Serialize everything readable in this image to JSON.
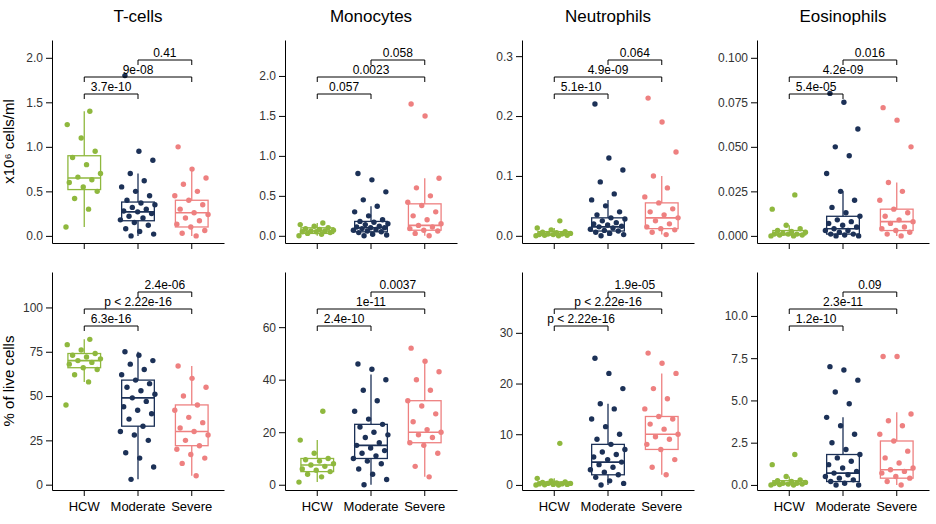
{
  "chart_data": [
    {
      "type": "box",
      "title": "T-cells",
      "ylabel": "x10⁶ cells/ml",
      "categories": [
        "HCW",
        "Moderate",
        "Severe"
      ],
      "colors": [
        "#8fb83e",
        "#1c3157",
        "#ee8080"
      ],
      "tick_labels": "y",
      "ylim": [
        -0.08,
        2.2
      ],
      "yticks": [
        {
          "value": 0,
          "label": "0.0"
        },
        0.5,
        {
          "value": 1,
          "label": "1.0"
        },
        1.5,
        {
          "value": 2,
          "label": "2.0"
        }
      ],
      "boxes": [
        {
          "whislo": 0.1,
          "q1": 0.52,
          "med": 0.65,
          "q3": 0.9,
          "whishi": 1.4
        },
        {
          "whislo": 0.0,
          "q1": 0.17,
          "med": 0.27,
          "q3": 0.38,
          "whishi": 0.7
        },
        {
          "whislo": 0.0,
          "q1": 0.1,
          "med": 0.26,
          "q3": 0.4,
          "whishi": 0.75
        }
      ],
      "points": [
        [
          0.1,
          0.3,
          0.42,
          0.5,
          0.55,
          0.6,
          0.63,
          0.66,
          0.7,
          0.8,
          0.88,
          0.95,
          1.1,
          1.25,
          1.4
        ],
        [
          0.0,
          0.02,
          0.05,
          0.08,
          0.12,
          0.15,
          0.18,
          0.2,
          0.22,
          0.25,
          0.27,
          0.28,
          0.3,
          0.32,
          0.35,
          0.37,
          0.4,
          0.45,
          0.5,
          0.55,
          0.62,
          0.7,
          0.85,
          0.95,
          1.8
        ],
        [
          0.0,
          0.03,
          0.06,
          0.1,
          0.13,
          0.17,
          0.2,
          0.24,
          0.26,
          0.3,
          0.35,
          0.4,
          0.45,
          0.5,
          0.58,
          0.65,
          0.75,
          1.0
        ]
      ],
      "comparisons": [
        {
          "from": "HCW",
          "to": "Moderate",
          "label": "3.7e-10"
        },
        {
          "from": "HCW",
          "to": "Severe",
          "label": "9e-08"
        },
        {
          "from": "Moderate",
          "to": "Severe",
          "label": "0.41"
        }
      ]
    },
    {
      "type": "box",
      "title": "Monocytes",
      "categories": [
        "HCW",
        "Moderate",
        "Severe"
      ],
      "colors": [
        "#8fb83e",
        "#1c3157",
        "#ee8080"
      ],
      "tick_labels": "y",
      "ylim": [
        -0.09,
        2.45
      ],
      "yticks": [
        {
          "value": 0,
          "label": "0.0"
        },
        0.5,
        {
          "value": 1,
          "label": "1.0"
        },
        1.5,
        {
          "value": 2,
          "label": "2.0"
        }
      ],
      "boxes": [
        {
          "whislo": 0.0,
          "q1": 0.03,
          "med": 0.06,
          "q3": 0.1,
          "whishi": 0.16
        },
        {
          "whislo": 0.0,
          "q1": 0.05,
          "med": 0.1,
          "q3": 0.18,
          "whishi": 0.37
        },
        {
          "whislo": 0.0,
          "q1": 0.07,
          "med": 0.13,
          "q3": 0.4,
          "whishi": 0.72
        }
      ],
      "points": [
        [
          0.0,
          0.02,
          0.03,
          0.04,
          0.05,
          0.05,
          0.06,
          0.06,
          0.07,
          0.08,
          0.09,
          0.1,
          0.12,
          0.14,
          0.16
        ],
        [
          0.0,
          0.01,
          0.02,
          0.04,
          0.05,
          0.06,
          0.07,
          0.08,
          0.09,
          0.1,
          0.1,
          0.11,
          0.12,
          0.14,
          0.15,
          0.17,
          0.18,
          0.2,
          0.25,
          0.3,
          0.37,
          0.45,
          0.55,
          0.7,
          0.78
        ],
        [
          0.0,
          0.03,
          0.06,
          0.07,
          0.09,
          0.11,
          0.13,
          0.15,
          0.2,
          0.25,
          0.3,
          0.38,
          0.42,
          0.5,
          0.6,
          0.72,
          1.5,
          1.65
        ]
      ],
      "comparisons": [
        {
          "from": "HCW",
          "to": "Moderate",
          "label": "0.057"
        },
        {
          "from": "HCW",
          "to": "Severe",
          "label": "0.0023"
        },
        {
          "from": "Moderate",
          "to": "Severe",
          "label": "0.058"
        }
      ]
    },
    {
      "type": "box",
      "title": "Neutrophils",
      "categories": [
        "HCW",
        "Moderate",
        "Severe"
      ],
      "colors": [
        "#8fb83e",
        "#1c3157",
        "#ee8080"
      ],
      "tick_labels": "y",
      "ylim": [
        -0.012,
        0.327
      ],
      "yticks": [
        {
          "value": 0,
          "label": "0.0"
        },
        0.1,
        0.2,
        0.3
      ],
      "boxes": [
        {
          "whislo": 0.0,
          "q1": 0.001,
          "med": 0.003,
          "q3": 0.007,
          "whishi": 0.013
        },
        {
          "whislo": 0.0,
          "q1": 0.008,
          "med": 0.015,
          "q3": 0.03,
          "whishi": 0.06
        },
        {
          "whislo": 0.002,
          "q1": 0.012,
          "med": 0.03,
          "q3": 0.055,
          "whishi": 0.1
        }
      ],
      "points": [
        [
          0.0,
          0.0,
          0.001,
          0.001,
          0.002,
          0.002,
          0.003,
          0.003,
          0.004,
          0.005,
          0.006,
          0.007,
          0.01,
          0.013,
          0.025
        ],
        [
          0.0,
          0.002,
          0.004,
          0.006,
          0.008,
          0.009,
          0.011,
          0.013,
          0.015,
          0.016,
          0.018,
          0.02,
          0.022,
          0.025,
          0.028,
          0.03,
          0.035,
          0.04,
          0.05,
          0.06,
          0.07,
          0.09,
          0.11,
          0.13,
          0.22
        ],
        [
          0.002,
          0.006,
          0.01,
          0.012,
          0.015,
          0.02,
          0.025,
          0.03,
          0.035,
          0.04,
          0.045,
          0.055,
          0.065,
          0.08,
          0.1,
          0.14,
          0.19,
          0.23
        ]
      ],
      "comparisons": [
        {
          "from": "HCW",
          "to": "Moderate",
          "label": "5.1e-10"
        },
        {
          "from": "HCW",
          "to": "Severe",
          "label": "4.9e-09"
        },
        {
          "from": "Moderate",
          "to": "Severe",
          "label": "0.064"
        }
      ]
    },
    {
      "type": "box",
      "title": "Eosinophils",
      "categories": [
        "HCW",
        "Moderate",
        "Severe"
      ],
      "colors": [
        "#8fb83e",
        "#1c3157",
        "#ee8080"
      ],
      "tick_labels": "y",
      "ylim": [
        -0.004,
        0.11
      ],
      "yticks": [
        {
          "value": 0,
          "label": "0.000"
        },
        0.025,
        {
          "value": 0.05,
          "label": "0.050"
        },
        0.075,
        {
          "value": 0.1,
          "label": "0.100"
        }
      ],
      "boxes": [
        {
          "whislo": 0.0,
          "q1": 0.0005,
          "med": 0.001,
          "q3": 0.003,
          "whishi": 0.006
        },
        {
          "whislo": 0.0,
          "q1": 0.001,
          "med": 0.004,
          "q3": 0.011,
          "whishi": 0.025
        },
        {
          "whislo": 0.0,
          "q1": 0.003,
          "med": 0.008,
          "q3": 0.015,
          "whishi": 0.03
        }
      ],
      "points": [
        [
          0.0,
          0.0,
          0.0005,
          0.0005,
          0.001,
          0.001,
          0.001,
          0.0015,
          0.002,
          0.0025,
          0.003,
          0.004,
          0.006,
          0.015,
          0.023
        ],
        [
          0.0,
          0.0,
          0.0005,
          0.001,
          0.001,
          0.002,
          0.003,
          0.003,
          0.004,
          0.005,
          0.006,
          0.007,
          0.008,
          0.009,
          0.011,
          0.013,
          0.016,
          0.02,
          0.025,
          0.035,
          0.045,
          0.05,
          0.06,
          0.075,
          0.08
        ],
        [
          0.0,
          0.001,
          0.002,
          0.003,
          0.004,
          0.005,
          0.007,
          0.008,
          0.009,
          0.011,
          0.013,
          0.015,
          0.02,
          0.025,
          0.03,
          0.05,
          0.065,
          0.072
        ]
      ],
      "comparisons": [
        {
          "from": "HCW",
          "to": "Moderate",
          "label": "5.4e-05"
        },
        {
          "from": "HCW",
          "to": "Severe",
          "label": "4.2e-09"
        },
        {
          "from": "Moderate",
          "to": "Severe",
          "label": "0.016"
        }
      ]
    },
    {
      "type": "box",
      "ylabel": "% of live cells",
      "categories": [
        "HCW",
        "Moderate",
        "Severe"
      ],
      "colors": [
        "#8fb83e",
        "#1c3157",
        "#ee8080"
      ],
      "ylim": [
        -3,
        120
      ],
      "yticks": [
        0,
        25,
        50,
        75,
        100
      ],
      "boxes": [
        {
          "whislo": 58,
          "q1": 66,
          "med": 70,
          "q3": 74,
          "whishi": 82
        },
        {
          "whislo": 3,
          "q1": 33,
          "med": 49,
          "q3": 59,
          "whishi": 75
        },
        {
          "whislo": 5,
          "q1": 22,
          "med": 30,
          "q3": 45,
          "whishi": 67
        }
      ],
      "points": [
        [
          45,
          58,
          62,
          65,
          66,
          68,
          69,
          70,
          71,
          72,
          73,
          74,
          76,
          79,
          82
        ],
        [
          3,
          10,
          15,
          18,
          25,
          28,
          30,
          33,
          37,
          40,
          42,
          44,
          47,
          49,
          51,
          53,
          55,
          57,
          59,
          62,
          65,
          68,
          70,
          73,
          75
        ],
        [
          5,
          12,
          15,
          17,
          20,
          22,
          25,
          28,
          30,
          32,
          35,
          38,
          42,
          45,
          50,
          55,
          60,
          67
        ]
      ],
      "comparisons": [
        {
          "from": "HCW",
          "to": "Moderate",
          "label": "6.3e-16"
        },
        {
          "from": "HCW",
          "to": "Severe",
          "label": "p < 2.22e-16"
        },
        {
          "from": "Moderate",
          "to": "Severe",
          "label": "2.4e-06"
        }
      ]
    },
    {
      "type": "box",
      "categories": [
        "HCW",
        "Moderate",
        "Severe"
      ],
      "colors": [
        "#8fb83e",
        "#1c3157",
        "#ee8080"
      ],
      "ylim": [
        -2,
        81
      ],
      "yticks": [
        0,
        20,
        40,
        60
      ],
      "boxes": [
        {
          "whislo": 1,
          "q1": 5,
          "med": 7.5,
          "q3": 10,
          "whishi": 17
        },
        {
          "whislo": 0,
          "q1": 10,
          "med": 15,
          "q3": 23,
          "whishi": 42
        },
        {
          "whislo": 3,
          "q1": 16,
          "med": 20,
          "q3": 32,
          "whishi": 47
        }
      ],
      "points": [
        [
          1,
          3,
          4,
          5,
          5.5,
          6,
          7,
          7.5,
          8,
          9,
          9.5,
          10,
          12,
          17,
          28
        ],
        [
          0,
          2,
          4,
          6,
          8,
          9,
          10,
          11,
          12,
          13,
          14,
          15,
          16,
          18,
          19,
          20,
          22,
          23,
          25,
          28,
          32,
          36,
          40,
          44,
          46
        ],
        [
          3,
          7,
          12,
          15,
          16,
          18,
          19,
          20,
          21,
          24,
          27,
          30,
          32,
          36,
          40,
          43,
          47,
          52
        ]
      ],
      "comparisons": [
        {
          "from": "HCW",
          "to": "Moderate",
          "label": "2.4e-10"
        },
        {
          "from": "HCW",
          "to": "Severe",
          "label": "1e-11"
        },
        {
          "from": "Moderate",
          "to": "Severe",
          "label": "0.0037"
        }
      ]
    },
    {
      "type": "box",
      "categories": [
        "HCW",
        "Moderate",
        "Severe"
      ],
      "colors": [
        "#8fb83e",
        "#1c3157",
        "#ee8080"
      ],
      "ylim": [
        -1,
        42
      ],
      "yticks": [
        0,
        10,
        20,
        30
      ],
      "boxes": [
        {
          "whislo": 0,
          "q1": 0.1,
          "med": 0.3,
          "q3": 0.6,
          "whishi": 1.3
        },
        {
          "whislo": 0,
          "q1": 2,
          "med": 4.5,
          "q3": 8,
          "whishi": 16
        },
        {
          "whislo": 2,
          "q1": 7,
          "med": 10,
          "q3": 13.5,
          "whishi": 22
        }
      ],
      "points": [
        [
          0,
          0,
          0.05,
          0.1,
          0.1,
          0.2,
          0.2,
          0.3,
          0.3,
          0.4,
          0.5,
          0.6,
          0.8,
          1.3,
          8.2
        ],
        [
          0,
          0.3,
          0.8,
          1.5,
          2,
          2.5,
          3,
          3.5,
          4,
          4.5,
          5,
          5.5,
          6,
          6.5,
          7,
          8,
          9,
          10,
          11.5,
          13,
          15,
          16,
          19,
          22,
          25
        ],
        [
          2,
          3.5,
          5,
          7,
          8,
          9,
          9.5,
          10,
          11,
          12,
          13,
          13.5,
          15,
          17,
          19,
          22,
          24,
          26
        ]
      ],
      "comparisons": [
        {
          "from": "HCW",
          "to": "Moderate",
          "label": "p < 2.22e-16"
        },
        {
          "from": "HCW",
          "to": "Severe",
          "label": "p < 2.22e-16"
        },
        {
          "from": "Moderate",
          "to": "Severe",
          "label": "1.9e-05"
        }
      ]
    },
    {
      "type": "box",
      "categories": [
        "HCW",
        "Moderate",
        "Severe"
      ],
      "colors": [
        "#8fb83e",
        "#1c3157",
        "#ee8080"
      ],
      "ylim": [
        -0.3,
        12.6
      ],
      "yticks": [
        {
          "value": 0,
          "label": "0.0"
        },
        2.5,
        {
          "value": 5,
          "label": "5.0"
        },
        7.5,
        {
          "value": 10,
          "label": "10.0"
        }
      ],
      "boxes": [
        {
          "whislo": 0,
          "q1": 0.05,
          "med": 0.1,
          "q3": 0.25,
          "whishi": 0.5
        },
        {
          "whislo": 0,
          "q1": 0.2,
          "med": 0.7,
          "q3": 1.8,
          "whishi": 4
        },
        {
          "whislo": 0,
          "q1": 0.4,
          "med": 0.9,
          "q3": 2.6,
          "whishi": 4.3
        }
      ],
      "points": [
        [
          0,
          0,
          0.02,
          0.05,
          0.05,
          0.08,
          0.1,
          0.1,
          0.15,
          0.2,
          0.25,
          0.3,
          0.5,
          1.2,
          1.8
        ],
        [
          0,
          0,
          0.1,
          0.2,
          0.3,
          0.4,
          0.5,
          0.6,
          0.7,
          0.8,
          1,
          1.2,
          1.4,
          1.6,
          1.8,
          2.1,
          2.5,
          3,
          3.5,
          4,
          4.8,
          5.5,
          6.2,
          6.8,
          7
        ],
        [
          0,
          0.2,
          0.4,
          0.5,
          0.7,
          0.8,
          0.9,
          1,
          1.3,
          1.6,
          2,
          2.6,
          3,
          3.5,
          3.8,
          4.2,
          7.6,
          7.6
        ]
      ],
      "comparisons": [
        {
          "from": "HCW",
          "to": "Moderate",
          "label": "1.2e-10"
        },
        {
          "from": "HCW",
          "to": "Severe",
          "label": "2.3e-11"
        },
        {
          "from": "Moderate",
          "to": "Severe",
          "label": "0.09"
        }
      ]
    }
  ]
}
